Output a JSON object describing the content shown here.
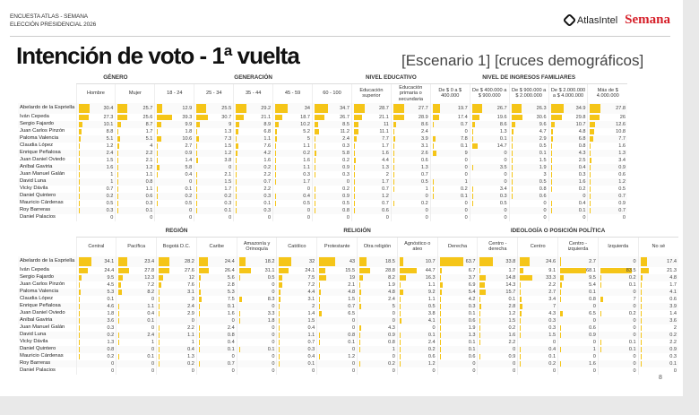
{
  "header": {
    "kicker_line1": "ENCUESTA ATLAS - SEMANA",
    "kicker_line2": "ELECCIÓN PRESIDENCIAL 2026",
    "logo_atlas": "AtlasIntel",
    "logo_semana": "Semana"
  },
  "title": "Intención de voto - 1ª vuelta",
  "subtitle": "[Escenario 1] [cruces demográficos]",
  "page_number": "8",
  "bar_color": "#f5c518",
  "candidates": [
    "Abelardo de la Espriella",
    "Iván Cepeda",
    "Sergio Fajardo",
    "Juan Carlos Pinzón",
    "Paloma Valencia",
    "Claudia López",
    "Enrique Peñalosa",
    "Juan Daniel Oviedo",
    "Aníbal Gaviria",
    "Juan Manuel Galán",
    "David Luna",
    "Vicky Dávila",
    "Daniel Quintero",
    "Mauricio Cárdenas",
    "Roy Barreras",
    "Daniel Palacios"
  ],
  "table1": {
    "groups": [
      {
        "label": "GÉNERO",
        "span": 2
      },
      {
        "label": "GENERACIÓN",
        "span": 5
      },
      {
        "label": "NIVEL EDUCATIVO",
        "span": 2
      },
      {
        "label": "NIVEL DE INGRESOS FAMILIARES",
        "span": 5
      }
    ],
    "columns": [
      "Hombre",
      "Mujer",
      "18 - 24",
      "25 - 34",
      "35 - 44",
      "45 - 59",
      "60 - 100",
      "Educación superior",
      "Educación primaria o secundaria",
      "De $ 0 a $ 400.000",
      "De $ 400.000 a $ 900.000",
      "De $ 900.000 a $ 2.000.000",
      "De $ 2.000.000 a $ 4.000.000",
      "Más de $ 4.000.000"
    ],
    "rows": [
      [
        30.4,
        25.7,
        12.9,
        25.5,
        29.2,
        34,
        34.7,
        28.7,
        27.7,
        19.7,
        26.7,
        26.3,
        34.9,
        27.8
      ],
      [
        27.3,
        25.6,
        39.3,
        30.7,
        21.1,
        18.7,
        26.7,
        21.1,
        28.9,
        17.4,
        19.6,
        30.6,
        29.8,
        26
      ],
      [
        10.1,
        8.7,
        9.9,
        9,
        8.9,
        10.2,
        8.5,
        11,
        8.6,
        0.7,
        8.6,
        9.6,
        10.7,
        12.6
      ],
      [
        8.8,
        1.7,
        1.8,
        1.3,
        6.8,
        5.2,
        11.2,
        11.1,
        2.4,
        0,
        1.3,
        4.7,
        4.8,
        10.8
      ],
      [
        5.1,
        5.1,
        10.6,
        7.3,
        1.1,
        5,
        2.4,
        7.7,
        3.9,
        7.8,
        0.1,
        2.9,
        6.8,
        7.7
      ],
      [
        1.2,
        4,
        2.7,
        1.5,
        7.6,
        1.1,
        0.3,
        1.7,
        3.1,
        0.1,
        14.7,
        0.5,
        0.8,
        1.6
      ],
      [
        2.4,
        2.2,
        0.9,
        1.2,
        4.2,
        0.2,
        5.8,
        1.6,
        2.6,
        9,
        0,
        0.1,
        4.3,
        1.3
      ],
      [
        1.5,
        2.1,
        1.4,
        3.8,
        1.6,
        1.6,
        0.2,
        4.4,
        0.6,
        0,
        0,
        1.5,
        2.5,
        3.4
      ],
      [
        1.6,
        1.2,
        5.8,
        0,
        0.2,
        1.1,
        0.9,
        1.3,
        1.3,
        0,
        3.5,
        1.9,
        0.4,
        0.9
      ],
      [
        1,
        1.1,
        0.4,
        2.1,
        2.2,
        0.3,
        0.3,
        2,
        0.7,
        0,
        0,
        3,
        0.3,
        0.6
      ],
      [
        1,
        0.8,
        0,
        1.5,
        0.7,
        1.7,
        0,
        1.7,
        0.5,
        1,
        0,
        0.5,
        1.6,
        1.2
      ],
      [
        0.7,
        1.1,
        0.1,
        1.7,
        2.2,
        0,
        0.2,
        0.7,
        1,
        0.2,
        3.4,
        0.8,
        0.2,
        0.5
      ],
      [
        0.2,
        0.6,
        0.2,
        0.2,
        0.3,
        0.4,
        0.9,
        1.2,
        0,
        0.1,
        0.3,
        0.6,
        0,
        0.7
      ],
      [
        0.5,
        0.3,
        0.5,
        0.3,
        0.1,
        0.5,
        0.5,
        0.7,
        0.2,
        0,
        0.5,
        0,
        0.4,
        0.9
      ],
      [
        0.3,
        0.1,
        0,
        0.1,
        0.3,
        0,
        0.8,
        0.6,
        0,
        0,
        0,
        0,
        0.1,
        0.7
      ],
      [
        0,
        0,
        0,
        0,
        0,
        0,
        0,
        0,
        0,
        0,
        0,
        0,
        0,
        0
      ]
    ]
  },
  "table2": {
    "groups": [
      {
        "label": "REGIÓN",
        "span": 5
      },
      {
        "label": "RELIGIÓN",
        "span": 4
      },
      {
        "label": "IDEOLOGÍA O POSICIÓN POLÍTICA",
        "span": 6
      }
    ],
    "columns": [
      "Central",
      "Pacífica",
      "Bogotá D.C.",
      "Caribe",
      "Amazonía y Orinoquía",
      "Católico",
      "Protestante",
      "Otra religión",
      "Agnóstico o ateo",
      "Derecha",
      "Centro - derecha",
      "Centro",
      "Centro - izquierda",
      "Izquierda",
      "No sé"
    ],
    "rows": [
      [
        34.1,
        23.4,
        28.2,
        24.4,
        18.2,
        32,
        43,
        18.5,
        10.7,
        63.7,
        33.8,
        24.6,
        2.7,
        0,
        17.4
      ],
      [
        24.4,
        27.8,
        27.6,
        26.4,
        31.1,
        24.1,
        15.5,
        28.8,
        44.7,
        6.7,
        1.7,
        9.1,
        68.1,
        83.5,
        21.3
      ],
      [
        9.5,
        12.3,
        12,
        5.6,
        0.5,
        7.5,
        19,
        8.2,
        16.3,
        3.7,
        14.8,
        33.3,
        9.5,
        0.2,
        4.8
      ],
      [
        4.5,
        7.2,
        7.6,
        2.8,
        0,
        7.2,
        2.1,
        1.9,
        1.1,
        6.9,
        14.3,
        2.2,
        5.4,
        0.1,
        1.7
      ],
      [
        5.3,
        8.2,
        3.1,
        5.3,
        0,
        4.4,
        4.8,
        4.8,
        9.2,
        5.4,
        15.7,
        2.7,
        0.1,
        0,
        4.1
      ],
      [
        0.1,
        0,
        3,
        7.5,
        8.3,
        3.1,
        1.5,
        2.4,
        1.1,
        4.2,
        0.1,
        3.4,
        0.8,
        7,
        0.6
      ],
      [
        4.6,
        1.1,
        2.4,
        0.1,
        0,
        2,
        0.7,
        5,
        0.5,
        0.3,
        2.8,
        7,
        0,
        0,
        3.9
      ],
      [
        1.8,
        0.4,
        2.9,
        1.6,
        3.3,
        1.4,
        6.5,
        0,
        3.8,
        0.1,
        1.2,
        4.3,
        6.5,
        0.2,
        1.4
      ],
      [
        3.6,
        0.1,
        0,
        0,
        1.8,
        1.5,
        0,
        0,
        4.1,
        0.6,
        1.5,
        0.3,
        0,
        0,
        3.6
      ],
      [
        0.3,
        0,
        2.2,
        2.4,
        0,
        0.4,
        0,
        4.3,
        0,
        1.9,
        0.2,
        0.3,
        0.6,
        0,
        2
      ],
      [
        0.2,
        2.4,
        1.1,
        0.8,
        0,
        1.1,
        0.8,
        0.9,
        0.1,
        1.3,
        1.6,
        1.5,
        0.9,
        0,
        0.2
      ],
      [
        1.3,
        1,
        1,
        0.4,
        0,
        0.7,
        0.1,
        0.8,
        2.4,
        0.1,
        2.2,
        0,
        0,
        0.1,
        2.2
      ],
      [
        0.8,
        0,
        0.4,
        0.1,
        0.1,
        0.3,
        0,
        1,
        0.2,
        0.1,
        0,
        0.4,
        1,
        0.1,
        0.9
      ],
      [
        0.2,
        0.1,
        1.3,
        0,
        0,
        0.4,
        1.2,
        0,
        0.6,
        0.6,
        0.9,
        0.1,
        0,
        0,
        0.3
      ],
      [
        0,
        0,
        0.2,
        0.7,
        0,
        0.1,
        0,
        0.2,
        1.2,
        0,
        0,
        0.2,
        1.6,
        0,
        0.1
      ],
      [
        0,
        0,
        0,
        0,
        0,
        0,
        0,
        0,
        0,
        0,
        0,
        0,
        0,
        0,
        0
      ]
    ]
  }
}
